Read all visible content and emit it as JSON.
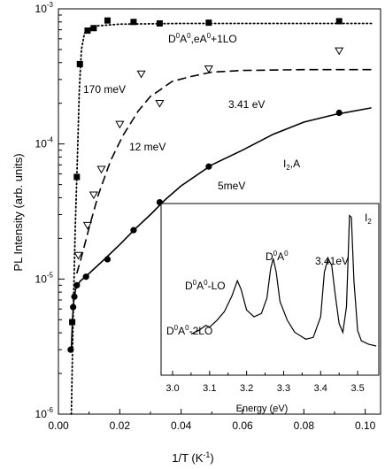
{
  "chart_data": [
    {
      "type": "scatter",
      "xlabel": "1/T (K",
      "xlabel_sup": "-1",
      "xlabel_end": ")",
      "ylabel": "PL Intensity (arb. units)",
      "yscale": "log",
      "xlim": [
        0.0,
        0.105
      ],
      "ylim": [
        1e-06,
        0.001
      ],
      "x_ticks": [
        0.0,
        0.02,
        0.04,
        0.06,
        0.08,
        0.1
      ],
      "x_tick_labels": [
        "0.00",
        "0.02",
        "0.04",
        "0.06",
        "0.08",
        "0.10"
      ],
      "y_ticks": [
        {
          "value": 1e-06,
          "base": "10",
          "exp": "-6"
        },
        {
          "value": 1e-05,
          "base": "10",
          "exp": "-5"
        },
        {
          "value": 0.0001,
          "base": "10",
          "exp": "-4"
        },
        {
          "value": 0.001,
          "base": "10",
          "exp": "-3"
        }
      ],
      "grid": false,
      "series": [
        {
          "marker": "square-filled",
          "line": "dotted",
          "points": [
            [
              0.0045,
              4.8e-06
            ],
            [
              0.006,
              5.7e-05
            ],
            [
              0.007,
              0.00039
            ],
            [
              0.0095,
              0.00069
            ],
            [
              0.0115,
              0.00072
            ],
            [
              0.016,
              0.00082
            ],
            [
              0.0245,
              0.0008
            ],
            [
              0.033,
              0.00078
            ],
            [
              0.049,
              0.00079
            ],
            [
              0.0915,
              0.00081
            ]
          ],
          "curve": [
            [
              0.0042,
              1e-06
            ],
            [
              0.0048,
              5e-06
            ],
            [
              0.0055,
              2.5e-05
            ],
            [
              0.0062,
              8e-05
            ],
            [
              0.0068,
              0.00025
            ],
            [
              0.0075,
              0.0005
            ],
            [
              0.0085,
              0.00066
            ],
            [
              0.01,
              0.00072
            ],
            [
              0.013,
              0.00075
            ],
            [
              0.02,
              0.00077
            ],
            [
              0.04,
              0.00078
            ],
            [
              0.07,
              0.00078
            ],
            [
              0.102,
              0.00078
            ]
          ]
        },
        {
          "marker": "triangle-down-open",
          "line": "dashed",
          "points": [
            [
              0.0065,
              1.5e-05
            ],
            [
              0.0095,
              2.5e-05
            ],
            [
              0.0115,
              4.2e-05
            ],
            [
              0.014,
              6.5e-05
            ],
            [
              0.02,
              0.00014
            ],
            [
              0.027,
              0.00033
            ],
            [
              0.033,
              0.0002
            ],
            [
              0.049,
              0.00036
            ],
            [
              0.0915,
              0.00049
            ]
          ],
          "curve": [
            [
              0.006,
              1.1e-05
            ],
            [
              0.008,
              1.6e-05
            ],
            [
              0.01,
              2.4e-05
            ],
            [
              0.013,
              4.2e-05
            ],
            [
              0.017,
              7.5e-05
            ],
            [
              0.021,
              0.000115
            ],
            [
              0.026,
              0.000175
            ],
            [
              0.03,
              0.000225
            ],
            [
              0.033,
              0.00025
            ],
            [
              0.037,
              0.00029
            ],
            [
              0.043,
              0.000315
            ],
            [
              0.05,
              0.00034
            ],
            [
              0.06,
              0.00035
            ],
            [
              0.08,
              0.000355
            ],
            [
              0.102,
              0.000355
            ]
          ]
        },
        {
          "marker": "circle-filled",
          "line": "solid",
          "points": [
            [
              0.004,
              3e-06
            ],
            [
              0.0048,
              6.2e-06
            ],
            [
              0.0052,
              7.4e-06
            ],
            [
              0.006,
              9e-06
            ],
            [
              0.009,
              1.04e-05
            ],
            [
              0.016,
              1.4e-05
            ],
            [
              0.0245,
              2.3e-05
            ],
            [
              0.033,
              3.7e-05
            ],
            [
              0.049,
              6.8e-05
            ],
            [
              0.0915,
              0.00017
            ]
          ],
          "curve": [
            [
              0.0042,
              3e-06
            ],
            [
              0.0046,
              5e-06
            ],
            [
              0.005,
              6.8e-06
            ],
            [
              0.0056,
              8.4e-06
            ],
            [
              0.007,
              9.6e-06
            ],
            [
              0.01,
              1.1e-05
            ],
            [
              0.015,
              1.4e-05
            ],
            [
              0.02,
              1.8e-05
            ],
            [
              0.025,
              2.35e-05
            ],
            [
              0.03,
              3e-05
            ],
            [
              0.035,
              3.9e-05
            ],
            [
              0.04,
              4.9e-05
            ],
            [
              0.05,
              7e-05
            ],
            [
              0.06,
              9e-05
            ],
            [
              0.07,
              0.000118
            ],
            [
              0.08,
              0.000145
            ],
            [
              0.09,
              0.000165
            ],
            [
              0.102,
              0.000185
            ]
          ]
        }
      ],
      "annotations": {
        "top_label": {
          "a": "D",
          "sup1": "0",
          "b": "A",
          "sup2": "0",
          "c": ",eA",
          "sup3": "0",
          "d": "+1LO"
        },
        "e170": "170 meV",
        "e12": "12 meV",
        "e341": "3.41 eV",
        "e5": "5meV",
        "i2a_base": "I",
        "i2a_sub": "2",
        "i2a_rest": ",A"
      }
    },
    {
      "type": "line",
      "xlabel": "Energy (eV)",
      "xlim": [
        3.0,
        3.55
      ],
      "x_ticks": [
        3.0,
        3.1,
        3.2,
        3.3,
        3.4,
        3.5
      ],
      "x_tick_labels": [
        "3.0",
        "3.1",
        "3.2",
        "3.3",
        "3.4",
        "3.5"
      ],
      "grid": false,
      "spectrum": [
        [
          3.05,
          0.24
        ],
        [
          3.07,
          0.26
        ],
        [
          3.09,
          0.29
        ],
        [
          3.1,
          0.28
        ],
        [
          3.12,
          0.32
        ],
        [
          3.14,
          0.37
        ],
        [
          3.16,
          0.46
        ],
        [
          3.175,
          0.55
        ],
        [
          3.185,
          0.5
        ],
        [
          3.2,
          0.38
        ],
        [
          3.22,
          0.34
        ],
        [
          3.24,
          0.36
        ],
        [
          3.255,
          0.45
        ],
        [
          3.265,
          0.62
        ],
        [
          3.272,
          0.68
        ],
        [
          3.28,
          0.6
        ],
        [
          3.29,
          0.43
        ],
        [
          3.31,
          0.32
        ],
        [
          3.33,
          0.25
        ],
        [
          3.36,
          0.21
        ],
        [
          3.38,
          0.22
        ],
        [
          3.4,
          0.34
        ],
        [
          3.41,
          0.6
        ],
        [
          3.42,
          0.68
        ],
        [
          3.43,
          0.64
        ],
        [
          3.44,
          0.46
        ],
        [
          3.45,
          0.3
        ],
        [
          3.46,
          0.25
        ],
        [
          3.47,
          0.4
        ],
        [
          3.478,
          0.93
        ],
        [
          3.483,
          0.92
        ],
        [
          3.49,
          0.55
        ],
        [
          3.5,
          0.26
        ],
        [
          3.51,
          0.2
        ],
        [
          3.53,
          0.18
        ],
        [
          3.55,
          0.17
        ]
      ],
      "peak_labels": {
        "d2lo": {
          "a": "D",
          "s1": "0",
          "b": "A",
          "s2": "0",
          "c": "-2LO"
        },
        "dlo": {
          "a": "D",
          "s1": "0",
          "b": "A",
          "s2": "0",
          "c": "-LO"
        },
        "da": {
          "a": "D",
          "s1": "0",
          "b": "A",
          "s2": "0"
        },
        "e341": "3.41eV",
        "i2": {
          "a": "I",
          "s": "2"
        }
      }
    }
  ]
}
